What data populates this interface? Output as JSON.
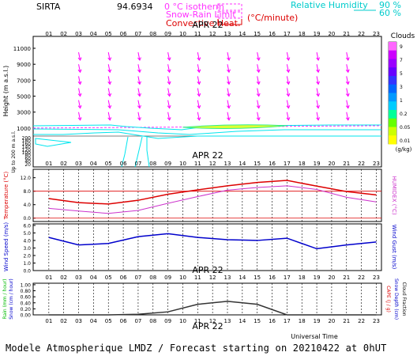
{
  "header": {
    "station": "SIRTA",
    "station_code": "94.6934",
    "legend": [
      {
        "label": "0 °C isotherm",
        "color": "#ff33ff",
        "style": "dashed"
      },
      {
        "label": "Snow-Rain Limit",
        "color": "#ff33ff",
        "style": "dashed"
      },
      {
        "label": "Convective Heat.",
        "color": "#dd0000",
        "style": "solid"
      },
      {
        "label": "(°C/minute)",
        "color": "#dd0000",
        "style": "none"
      }
    ],
    "rh_legend": {
      "label": "Relative Humidity",
      "levels": [
        "90 %",
        "60 %"
      ],
      "color": "#00cccc"
    }
  },
  "date_label": "APR 22",
  "hours": [
    "01",
    "02",
    "03",
    "04",
    "05",
    "06",
    "07",
    "08",
    "09",
    "10",
    "11",
    "12",
    "13",
    "14",
    "15",
    "16",
    "17",
    "18",
    "19",
    "20",
    "21",
    "22",
    "23"
  ],
  "footer": {
    "x_axis_label": "Universal Time",
    "caption": "Modele Atmospherique LMDZ / Forecast starting on 20210422 at 0hUT"
  },
  "colors": {
    "wind_arrows": "#ff00ff",
    "humidity": "#00e5ee",
    "isotherm": "#ff33ff",
    "temperature": "#dd0000",
    "humidex": "#cc33cc",
    "wind": "#0000cc",
    "rain": "#333333"
  },
  "chart_data": [
    {
      "type": "heatmap",
      "name": "profile",
      "ylabel": "Height (m a.s.l.)",
      "ylabel_low": "Up to 200 m a.s.l.",
      "yticks_upper": [
        1000,
        3000,
        5000,
        7000,
        9000,
        11000
      ],
      "yticks_lower": [
        20,
        40,
        60,
        80,
        100,
        120,
        140,
        160,
        180,
        200
      ],
      "isotherm_m": 1000,
      "cloud_patch": {
        "hours": [
          10,
          17
        ],
        "height_m": 1200,
        "peak_g_per_kg": 0.1
      },
      "cloud_scale": {
        "title": "Clouds",
        "unit": "(g/kg)",
        "levels": [
          "9",
          "7",
          "5",
          "3",
          "1",
          "0.2",
          "0.05",
          "0.01"
        ],
        "colors": [
          "#ff66ff",
          "#cc00ff",
          "#9900ff",
          "#6600ff",
          "#3333ff",
          "#0066ff",
          "#0099ff",
          "#00ccff",
          "#00ff99",
          "#66ff00",
          "#ccff00",
          "#ffff00"
        ]
      },
      "wind_levels_m": [
        10000,
        8500,
        7000,
        5500,
        4000,
        2500
      ]
    },
    {
      "type": "line",
      "name": "temperature",
      "ylabel": "Temperature (°C)",
      "ylabel_right": "HUMIDEX (°C)",
      "yticks": [
        "12.0",
        "8.0",
        "4.0",
        "0.0"
      ],
      "ylim": [
        -1,
        14.5
      ],
      "x": [
        1,
        3,
        5,
        7,
        9,
        11,
        13,
        15,
        17,
        19,
        21,
        23
      ],
      "series": [
        {
          "name": "Temperature",
          "values": [
            5.8,
            4.6,
            4.2,
            5.3,
            7.1,
            8.4,
            9.6,
            10.6,
            11.2,
            9.5,
            7.9,
            6.9
          ]
        },
        {
          "name": "HUMIDEX",
          "values": [
            2.9,
            2.1,
            1.4,
            2.3,
            4.4,
            6.4,
            8.3,
            9.1,
            9.6,
            8.5,
            6.2,
            4.8
          ]
        }
      ]
    },
    {
      "type": "line",
      "name": "wind",
      "ylabel": "Wind Speed (m/s)",
      "ylabel_right": "Wind Gust (m/s)",
      "yticks": [
        "6.0",
        "5.0",
        "4.0",
        "3.0",
        "2.0",
        "1.0",
        "0.0"
      ],
      "ylim": [
        0,
        6.2
      ],
      "x": [
        1,
        3,
        5,
        7,
        9,
        11,
        13,
        15,
        17,
        19,
        21,
        23
      ],
      "series": [
        {
          "name": "Wind Speed",
          "values": [
            4.4,
            3.4,
            3.6,
            4.5,
            4.9,
            4.4,
            4.1,
            4.0,
            4.3,
            2.9,
            3.4,
            3.8
          ]
        }
      ]
    },
    {
      "type": "line",
      "name": "precip",
      "ylabel": "Rain (mm / hour)",
      "ylabel2": "Snow (cm / hour)",
      "ylabel_right": "CAPE (J / g)",
      "ylabel_right2": "Snow Depth (cm)",
      "ylabel_right3": "Cloud Fraction",
      "yticks": [
        "1.00",
        "0.80",
        "0.60",
        "0.40",
        "0.20",
        "0.00"
      ],
      "ylim": [
        0,
        1.05
      ],
      "x": [
        1,
        3,
        5,
        7,
        9,
        11,
        13,
        15,
        17,
        19,
        21,
        23
      ],
      "series": [
        {
          "name": "Rain",
          "values": [
            0.0,
            0.0,
            0.0,
            0.02,
            0.1,
            0.35,
            0.45,
            0.35,
            0.0,
            0.0,
            0.0,
            0.0
          ]
        }
      ]
    }
  ]
}
